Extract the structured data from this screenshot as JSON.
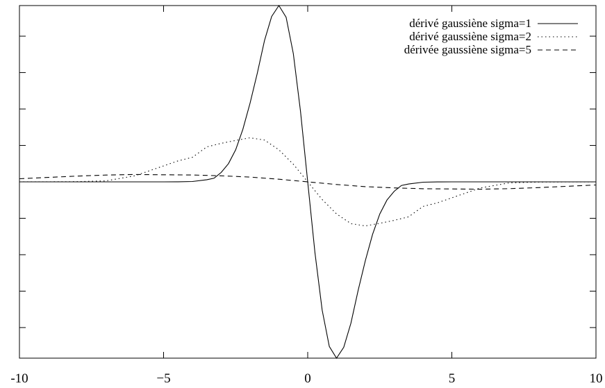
{
  "chart_data": {
    "type": "line",
    "title": "",
    "xlabel": "",
    "ylabel": "",
    "xlim": [
      -10,
      10
    ],
    "ylim": [
      -0.242,
      0.242
    ],
    "x_ticks": [
      -10,
      -5,
      0,
      5,
      10
    ],
    "x_tick_labels": [
      "-10",
      "−5",
      "0",
      "5",
      "10"
    ],
    "y_ticks": [
      -0.2,
      -0.15,
      -0.1,
      -0.05,
      0,
      0.05,
      0.1,
      0.15,
      0.2
    ],
    "grid": false,
    "legend_position": "top-right",
    "series": [
      {
        "name": "dérivé gaussiène sigma=1",
        "sigma": 1,
        "dash": "solid",
        "x": [
          -10,
          -9,
          -8,
          -7,
          -6,
          -5,
          -4.5,
          -4,
          -3.5,
          -3.25,
          -3,
          -2.75,
          -2.5,
          -2.25,
          -2,
          -1.75,
          -1.5,
          -1.25,
          -1,
          -0.75,
          -0.5,
          -0.25,
          0,
          0.25,
          0.5,
          0.75,
          1,
          1.25,
          1.5,
          1.75,
          2,
          2.25,
          2.5,
          2.75,
          3,
          3.25,
          3.5,
          4,
          4.5,
          5,
          6,
          7,
          8,
          9,
          10
        ],
        "y": [
          0,
          0,
          0,
          0,
          0,
          0,
          0.0001,
          0.0005,
          0.003,
          0.005,
          0.013,
          0.025,
          0.044,
          0.072,
          0.108,
          0.149,
          0.194,
          0.227,
          0.242,
          0.226,
          0.176,
          0.097,
          0,
          -0.097,
          -0.176,
          -0.226,
          -0.242,
          -0.227,
          -0.194,
          -0.149,
          -0.108,
          -0.072,
          -0.044,
          -0.025,
          -0.013,
          -0.005,
          -0.003,
          -0.0005,
          -0.0001,
          0,
          0,
          0,
          0,
          0,
          0
        ]
      },
      {
        "name": "dérivé gaussiène sigma=2",
        "sigma": 2,
        "dash": "dotted",
        "x": [
          -10,
          -9,
          -8,
          -7,
          -6,
          -5,
          -4.5,
          -4,
          -3.5,
          -3,
          -2.5,
          -2,
          -1.5,
          -1,
          -0.5,
          0,
          0.5,
          1,
          1.5,
          2,
          2.5,
          3,
          3.5,
          4,
          4.5,
          5,
          6,
          7,
          8,
          9,
          10
        ],
        "y": [
          0,
          0.0001,
          0.0003,
          0.0013,
          0.0083,
          0.0219,
          0.0288,
          0.0337,
          0.048,
          0.0529,
          0.0569,
          0.0605,
          0.0574,
          0.044,
          0.0242,
          0,
          -0.0242,
          -0.044,
          -0.0574,
          -0.0605,
          -0.0569,
          -0.0529,
          -0.048,
          -0.0337,
          -0.0288,
          -0.0219,
          -0.0083,
          -0.0013,
          -0.0003,
          -0.0001,
          0
        ]
      },
      {
        "name": "dérivée gaussiène sigma=5",
        "sigma": 5,
        "dash": "dashed",
        "x": [
          -10,
          -9,
          -8,
          -7,
          -6,
          -5,
          -4,
          -3,
          -2,
          -1,
          0,
          1,
          2,
          3,
          4,
          5,
          6,
          7,
          8,
          9,
          10
        ],
        "y": [
          0.0043,
          0.0061,
          0.0079,
          0.0093,
          0.0101,
          0.0097,
          0.0094,
          0.0083,
          0.0066,
          0.0036,
          0,
          -0.0036,
          -0.0066,
          -0.0083,
          -0.0094,
          -0.0097,
          -0.0101,
          -0.0093,
          -0.0079,
          -0.0061,
          -0.0043
        ]
      }
    ]
  }
}
